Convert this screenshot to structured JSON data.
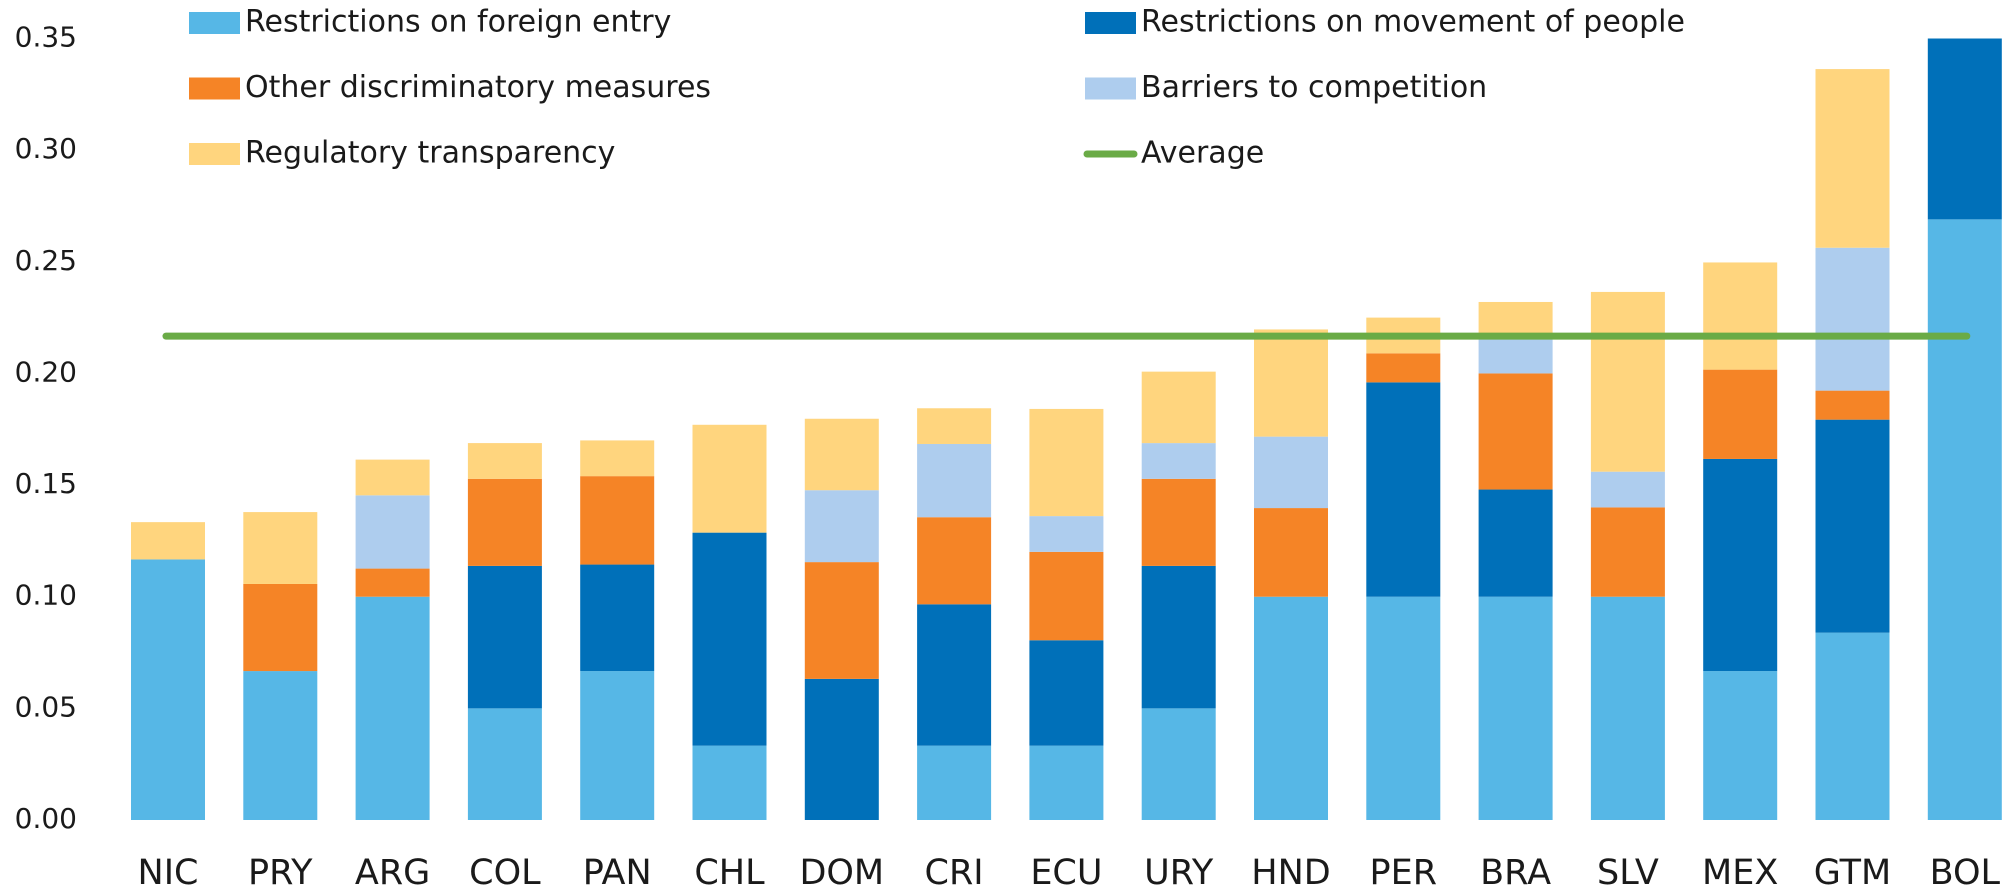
{
  "chart_data": {
    "type": "stacked_bar",
    "categories": [
      "NIC",
      "PRY",
      "ARG",
      "COL",
      "PAN",
      "CHL",
      "DOM",
      "CRI",
      "ECU",
      "URY",
      "HND",
      "PER",
      "BRA",
      "SLV",
      "MEX",
      "GTM",
      "BOL"
    ],
    "series": [
      {
        "name": "Restrictions on foreign entry",
        "color": "#56b7e6",
        "values": [
          0.1167,
          0.0667,
          0.1,
          0.05,
          0.0667,
          0.0333,
          0,
          0.0333,
          0.0333,
          0.05,
          0.1,
          0.1,
          0.1,
          0.1,
          0.0667,
          0.0839,
          0.269
        ]
      },
      {
        "name": "Restrictions on movement of people",
        "color": "#0070b9",
        "values": [
          0,
          0,
          0,
          0.0638,
          0.0477,
          0.0954,
          0.0632,
          0.0633,
          0.0472,
          0.0638,
          0,
          0.096,
          0.048,
          0,
          0.095,
          0.0954,
          0.081
        ]
      },
      {
        "name": "Other discriminatory measures",
        "color": "#f58426",
        "values": [
          0,
          0.039,
          0.0126,
          0.039,
          0.0396,
          0,
          0.0523,
          0.039,
          0.0396,
          0.039,
          0.0397,
          0.013,
          0.052,
          0.04,
          0.04,
          0.013,
          0
        ]
      },
      {
        "name": "Barriers to competition",
        "color": "#aecdee",
        "values": [
          0,
          0,
          0.0328,
          0,
          0,
          0,
          0.0322,
          0.0328,
          0.016,
          0.016,
          0.032,
          0,
          0.016,
          0.016,
          0,
          0.064,
          0
        ]
      },
      {
        "name": "Regulatory transparency",
        "color": "#ffd57e",
        "values": [
          0.0167,
          0.0322,
          0.016,
          0.016,
          0.016,
          0.0483,
          0.032,
          0.016,
          0.048,
          0.032,
          0.048,
          0.016,
          0.016,
          0.0805,
          0.048,
          0.08,
          0
        ]
      }
    ],
    "average": {
      "name": "Average",
      "color": "#6aab46",
      "value": 0.2167
    },
    "ylim": [
      0,
      0.35
    ],
    "yticks": [
      {
        "value": 0,
        "label": "0.00"
      },
      0.05,
      {
        "value": 0.1,
        "label": "0.10"
      },
      0.15,
      {
        "value": 0.2,
        "label": "0.20"
      },
      0.25,
      {
        "value": 0.3,
        "label": "0.30"
      },
      0.35
    ],
    "legend": "top"
  }
}
